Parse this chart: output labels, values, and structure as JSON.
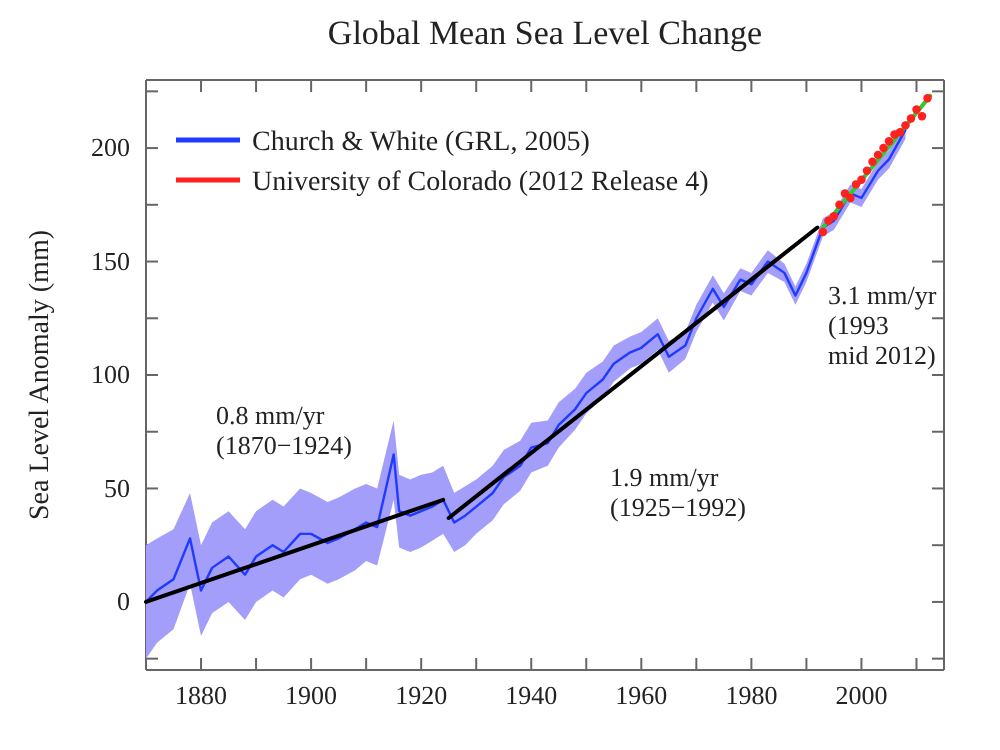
{
  "chart_data": {
    "type": "line",
    "title": "Global Mean Sea Level Change",
    "ylabel": "Sea Level Anomaly (mm)",
    "xlim": [
      1870,
      2015
    ],
    "ylim": [
      -30,
      230
    ],
    "xticks": [
      {
        "value": 1870,
        "label": null
      },
      1880,
      {
        "value": 1890,
        "label": null
      },
      1900,
      {
        "value": 1910,
        "label": null
      },
      1920,
      {
        "value": 1930,
        "label": null
      },
      1940,
      {
        "value": 1950,
        "label": null
      },
      1960,
      {
        "value": 1970,
        "label": null
      },
      1980,
      {
        "value": 1990,
        "label": null
      },
      2000,
      {
        "value": 2010,
        "label": null
      }
    ],
    "yticks": [
      {
        "value": -25,
        "label": null
      },
      0,
      {
        "value": 25,
        "label": null
      },
      50,
      {
        "value": 75,
        "label": null
      },
      100,
      {
        "value": 125,
        "label": null
      },
      150,
      {
        "value": 175,
        "label": null
      },
      200,
      {
        "value": 225,
        "label": null
      }
    ],
    "grid": false,
    "legend": "top left",
    "line_style": "solid",
    "series": [
      {
        "name": "Church & White (GRL, 2005)",
        "color": "#1f3bff",
        "x": [
          1870,
          1872,
          1875,
          1878,
          1880,
          1882,
          1885,
          1888,
          1890,
          1893,
          1895,
          1898,
          1900,
          1903,
          1905,
          1908,
          1910,
          1912,
          1915,
          1916,
          1918,
          1920,
          1922,
          1924,
          1926,
          1928,
          1930,
          1933,
          1935,
          1938,
          1940,
          1943,
          1945,
          1948,
          1950,
          1953,
          1955,
          1958,
          1960,
          1963,
          1965,
          1968,
          1970,
          1973,
          1975,
          1978,
          1980,
          1983,
          1986,
          1988,
          1990,
          1993,
          1995,
          1998,
          2000,
          2003,
          2005,
          2008
        ],
        "values": [
          0,
          5,
          10,
          28,
          5,
          15,
          20,
          12,
          20,
          25,
          22,
          30,
          30,
          26,
          28,
          32,
          35,
          33,
          65,
          40,
          38,
          40,
          42,
          45,
          35,
          38,
          42,
          48,
          55,
          60,
          68,
          70,
          78,
          85,
          92,
          98,
          105,
          110,
          112,
          118,
          108,
          113,
          125,
          138,
          130,
          142,
          140,
          150,
          145,
          135,
          145,
          165,
          168,
          180,
          178,
          190,
          195,
          208
        ],
        "lower": [
          -25,
          -18,
          -12,
          8,
          -15,
          -5,
          0,
          -8,
          0,
          5,
          2,
          10,
          12,
          8,
          10,
          14,
          18,
          16,
          45,
          24,
          22,
          24,
          27,
          30,
          22,
          25,
          30,
          36,
          43,
          49,
          57,
          60,
          68,
          76,
          83,
          90,
          97,
          103,
          105,
          111,
          101,
          107,
          119,
          132,
          124,
          137,
          135,
          145,
          141,
          131,
          141,
          161,
          164,
          176,
          174,
          186,
          191,
          204
        ],
        "upper": [
          25,
          28,
          32,
          48,
          25,
          35,
          40,
          32,
          40,
          45,
          42,
          50,
          48,
          44,
          46,
          50,
          52,
          50,
          80,
          56,
          54,
          56,
          57,
          60,
          48,
          51,
          54,
          60,
          67,
          71,
          79,
          80,
          88,
          94,
          101,
          106,
          113,
          117,
          119,
          125,
          115,
          119,
          131,
          144,
          136,
          147,
          145,
          155,
          149,
          139,
          149,
          169,
          172,
          184,
          182,
          194,
          199,
          212
        ]
      },
      {
        "name": "University of Colorado (2012 Release 4)",
        "type": "scatter",
        "color": "#ff2020",
        "marker": "circle",
        "x": [
          1993,
          1994,
          1995,
          1996,
          1997,
          1998,
          1999,
          2000,
          2001,
          2002,
          2003,
          2004,
          2005,
          2006,
          2007,
          2008,
          2009,
          2010,
          2011,
          2012
        ],
        "values": [
          163,
          168,
          170,
          175,
          180,
          178,
          184,
          186,
          190,
          194,
          197,
          200,
          203,
          206,
          207,
          210,
          213,
          217,
          214,
          222
        ]
      },
      {
        "color": "#000000",
        "x": [
          1870,
          1924
        ],
        "values": [
          0,
          45
        ]
      },
      {
        "color": "#000000",
        "x": [
          1925,
          1992
        ],
        "values": [
          37,
          165
        ]
      },
      {
        "color": "#2ecc2e",
        "x": [
          1993,
          2012.5
        ],
        "values": [
          165,
          223
        ]
      }
    ],
    "annotations": [
      "0.8 mm/yr\n(1870−1924)",
      "1.9 mm/yr\n(1925−1992)",
      "3.1 mm/yr\n(1993\nmid 2012)"
    ]
  }
}
